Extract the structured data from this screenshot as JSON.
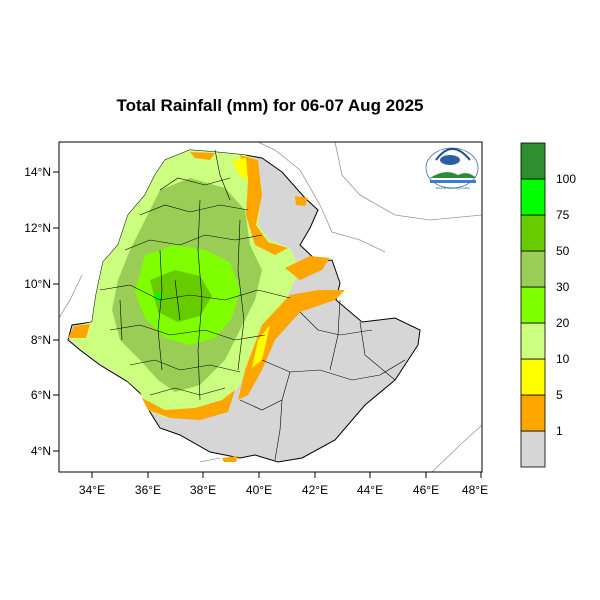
{
  "title": "Total Rainfall (mm) for 06-07 Aug 2025",
  "axes": {
    "x_ticks": [
      "34°E",
      "36°E",
      "38°E",
      "40°E",
      "42°E",
      "44°E",
      "46°E",
      "48°E"
    ],
    "y_ticks": [
      "14°N",
      "12°N",
      "10°N",
      "8°N",
      "6°N",
      "4°N"
    ]
  },
  "legend": {
    "colors": [
      "#d6d6d6",
      "#ffa500",
      "#ffff00",
      "#ccff80",
      "#80ff00",
      "#9acd55",
      "#66cc00",
      "#00ff00",
      "#2d8f2d"
    ],
    "labels": [
      "1",
      "5",
      "10",
      "20",
      "30",
      "50",
      "75",
      "100"
    ]
  },
  "logo": {
    "text": "Ethiopian Meteorology Institute"
  },
  "colors": {
    "land_dry": "#d6d6d6",
    "light_rain": "#ccff80",
    "orange": "#ffa500"
  }
}
